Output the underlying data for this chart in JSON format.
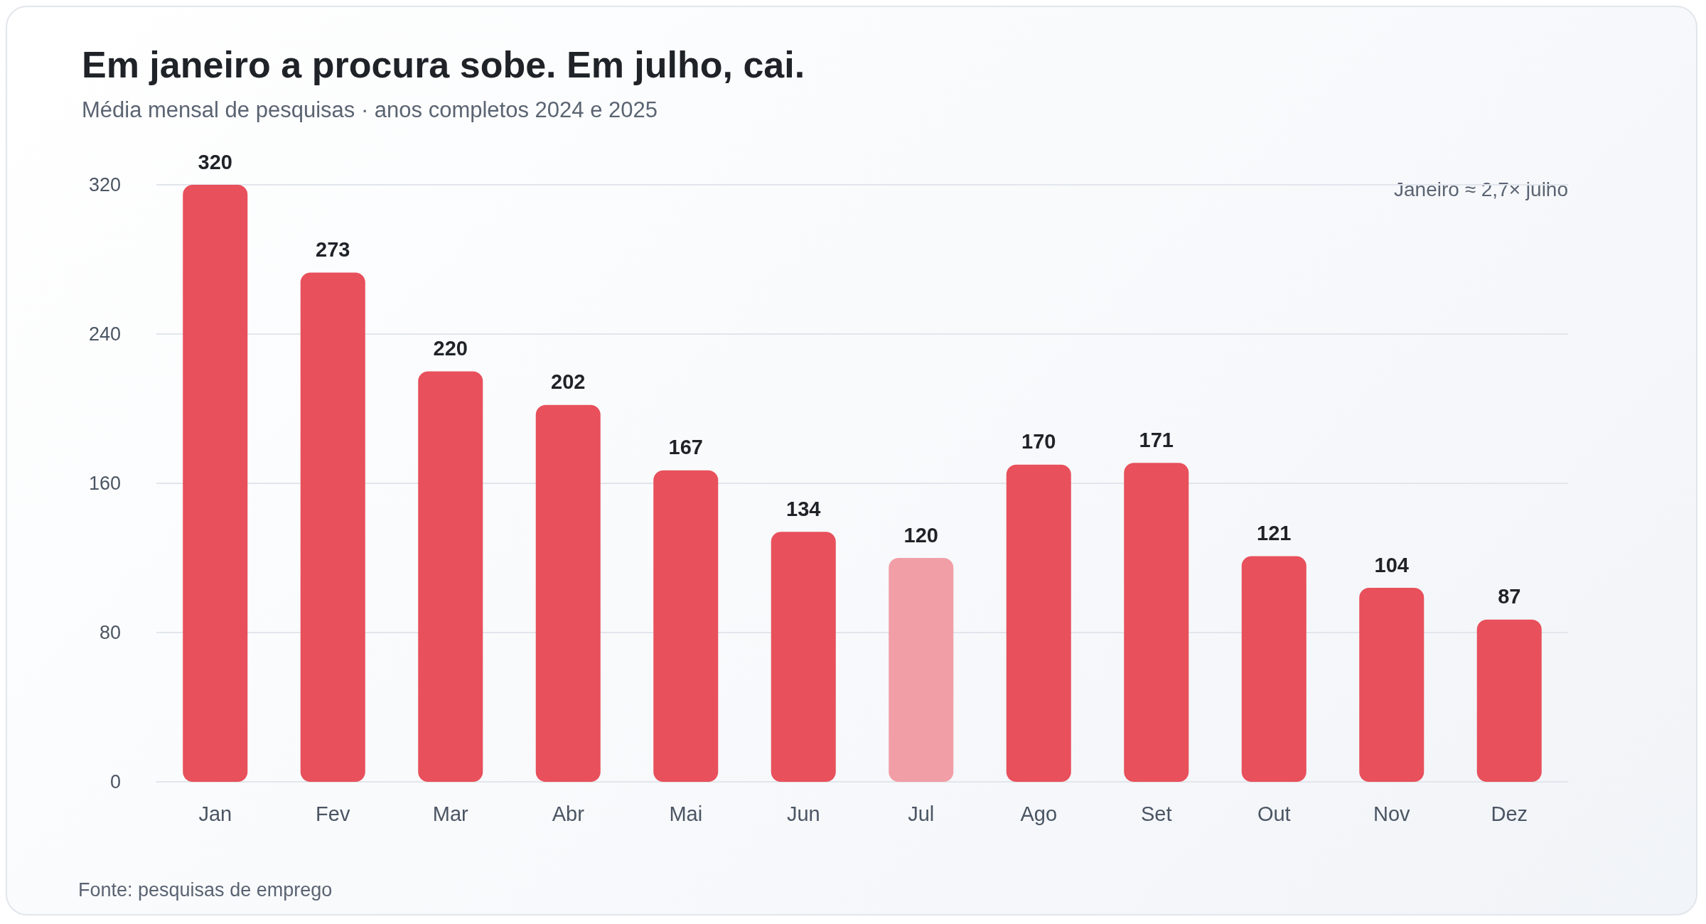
{
  "chart_data": {
    "type": "bar",
    "title": "Em janeiro a procura sobe. Em julho, cai.",
    "subtitle": "Média mensal de pesquisas · anos completos 2024 e 2025",
    "categories": [
      "Jan",
      "Fev",
      "Mar",
      "Abr",
      "Mai",
      "Jun",
      "Jul",
      "Ago",
      "Set",
      "Out",
      "Nov",
      "Dez"
    ],
    "values": [
      320,
      273,
      220,
      202,
      167,
      134,
      120,
      170,
      171,
      121,
      104,
      87
    ],
    "colors": [
      "#e8505b",
      "#e8505b",
      "#e8505b",
      "#e8505b",
      "#e8505b",
      "#e8505b",
      "#f19ea6",
      "#e8505b",
      "#e8505b",
      "#e8505b",
      "#e8505b",
      "#e8505b"
    ],
    "ylim": [
      0,
      320
    ],
    "yticks": [
      0,
      80,
      160,
      240,
      320
    ],
    "grid": "y",
    "data_labels": true,
    "annotations": [
      "Janeiro ≈ 2,7× julho",
      "Fonte: pesquisas de emprego"
    ]
  }
}
